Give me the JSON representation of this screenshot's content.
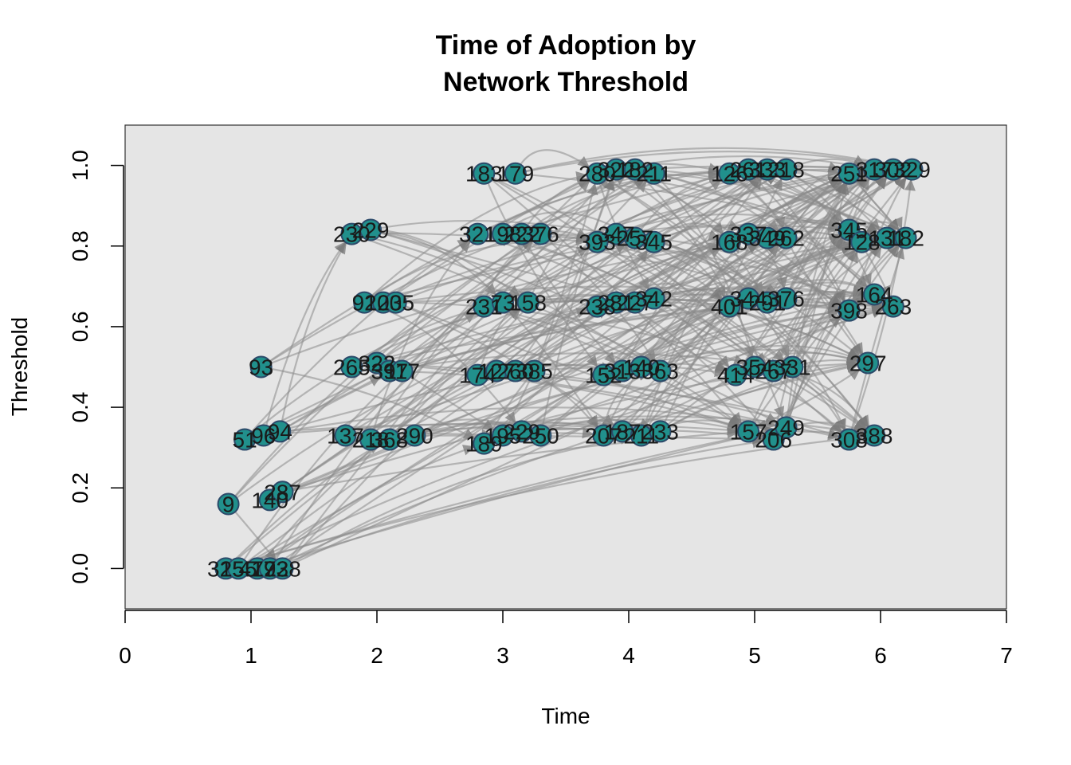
{
  "chart_data": {
    "type": "scatter",
    "title": [
      "Time of Adoption by",
      "Network Threshold"
    ],
    "xlabel": "Time",
    "ylabel": "Threshold",
    "xlim": [
      0,
      7
    ],
    "ylim": [
      -0.1,
      1.1
    ],
    "x_ticks": [
      "0",
      "1",
      "2",
      "3",
      "4",
      "5",
      "6",
      "7"
    ],
    "y_ticks": [
      "0.0",
      "0.2",
      "0.4",
      "0.6",
      "0.8",
      "1.0"
    ],
    "y_tick_values": [
      0.0,
      0.2,
      0.4,
      0.6,
      0.8,
      1.0
    ],
    "grid": false,
    "legend": "none",
    "colors": {
      "panel_bg": "#e5e5e5",
      "node_fill": "#21908c",
      "node_stroke": "#2c4a6a",
      "edge": "#8a8a8a",
      "label": "#1a1a1a"
    },
    "points": [
      {
        "x": 0.8,
        "y": 0.0,
        "label": "325"
      },
      {
        "x": 0.9,
        "y": 0.0,
        "label": "155"
      },
      {
        "x": 1.05,
        "y": 0.0,
        "label": "477"
      },
      {
        "x": 1.15,
        "y": 0.0,
        "label": "193"
      },
      {
        "x": 1.25,
        "y": 0.0,
        "label": "228"
      },
      {
        "x": 0.82,
        "y": 0.16,
        "label": "9"
      },
      {
        "x": 1.15,
        "y": 0.17,
        "label": "140"
      },
      {
        "x": 1.25,
        "y": 0.19,
        "label": "287"
      },
      {
        "x": 0.95,
        "y": 0.32,
        "label": "51"
      },
      {
        "x": 1.1,
        "y": 0.33,
        "label": "96"
      },
      {
        "x": 1.23,
        "y": 0.34,
        "label": "94"
      },
      {
        "x": 1.08,
        "y": 0.5,
        "label": "93"
      },
      {
        "x": 1.8,
        "y": 0.83,
        "label": "230"
      },
      {
        "x": 1.95,
        "y": 0.84,
        "label": "229"
      },
      {
        "x": 1.9,
        "y": 0.66,
        "label": "92"
      },
      {
        "x": 2.05,
        "y": 0.66,
        "label": "100"
      },
      {
        "x": 2.15,
        "y": 0.66,
        "label": "235"
      },
      {
        "x": 1.8,
        "y": 0.5,
        "label": "265"
      },
      {
        "x": 2.0,
        "y": 0.51,
        "label": "322"
      },
      {
        "x": 2.1,
        "y": 0.49,
        "label": "397"
      },
      {
        "x": 2.2,
        "y": 0.49,
        "label": "117"
      },
      {
        "x": 1.75,
        "y": 0.33,
        "label": "137"
      },
      {
        "x": 1.95,
        "y": 0.32,
        "label": "218"
      },
      {
        "x": 2.1,
        "y": 0.32,
        "label": "368"
      },
      {
        "x": 2.3,
        "y": 0.33,
        "label": "290"
      },
      {
        "x": 2.85,
        "y": 0.98,
        "label": "183"
      },
      {
        "x": 3.1,
        "y": 0.98,
        "label": "179"
      },
      {
        "x": 2.8,
        "y": 0.83,
        "label": "321"
      },
      {
        "x": 3.0,
        "y": 0.83,
        "label": "198"
      },
      {
        "x": 3.15,
        "y": 0.83,
        "label": "222"
      },
      {
        "x": 3.3,
        "y": 0.83,
        "label": "376"
      },
      {
        "x": 2.85,
        "y": 0.65,
        "label": "231"
      },
      {
        "x": 3.0,
        "y": 0.66,
        "label": "73"
      },
      {
        "x": 3.2,
        "y": 0.66,
        "label": "158"
      },
      {
        "x": 2.8,
        "y": 0.48,
        "label": "174"
      },
      {
        "x": 2.95,
        "y": 0.49,
        "label": "127"
      },
      {
        "x": 3.1,
        "y": 0.49,
        "label": "260"
      },
      {
        "x": 3.25,
        "y": 0.49,
        "label": "385"
      },
      {
        "x": 2.85,
        "y": 0.31,
        "label": "189"
      },
      {
        "x": 3.0,
        "y": 0.33,
        "label": "195"
      },
      {
        "x": 3.15,
        "y": 0.34,
        "label": "229"
      },
      {
        "x": 3.3,
        "y": 0.33,
        "label": "250"
      },
      {
        "x": 3.75,
        "y": 0.98,
        "label": "280"
      },
      {
        "x": 3.9,
        "y": 0.99,
        "label": "322"
      },
      {
        "x": 4.05,
        "y": 0.99,
        "label": "182"
      },
      {
        "x": 4.2,
        "y": 0.98,
        "label": "211"
      },
      {
        "x": 3.75,
        "y": 0.81,
        "label": "393"
      },
      {
        "x": 3.9,
        "y": 0.83,
        "label": "347"
      },
      {
        "x": 4.05,
        "y": 0.82,
        "label": "257"
      },
      {
        "x": 4.2,
        "y": 0.81,
        "label": "345"
      },
      {
        "x": 3.75,
        "y": 0.65,
        "label": "238"
      },
      {
        "x": 3.9,
        "y": 0.66,
        "label": "281"
      },
      {
        "x": 4.05,
        "y": 0.66,
        "label": "227"
      },
      {
        "x": 4.2,
        "y": 0.67,
        "label": "342"
      },
      {
        "x": 3.8,
        "y": 0.48,
        "label": "152"
      },
      {
        "x": 3.95,
        "y": 0.49,
        "label": "313"
      },
      {
        "x": 4.1,
        "y": 0.5,
        "label": "140"
      },
      {
        "x": 4.25,
        "y": 0.49,
        "label": "363"
      },
      {
        "x": 3.8,
        "y": 0.33,
        "label": "207"
      },
      {
        "x": 3.95,
        "y": 0.34,
        "label": "187"
      },
      {
        "x": 4.1,
        "y": 0.33,
        "label": "211"
      },
      {
        "x": 4.25,
        "y": 0.34,
        "label": "233"
      },
      {
        "x": 4.8,
        "y": 0.98,
        "label": "126"
      },
      {
        "x": 4.95,
        "y": 0.99,
        "label": "261"
      },
      {
        "x": 5.1,
        "y": 0.99,
        "label": "333"
      },
      {
        "x": 5.25,
        "y": 0.99,
        "label": "218"
      },
      {
        "x": 4.8,
        "y": 0.81,
        "label": "168"
      },
      {
        "x": 4.95,
        "y": 0.83,
        "label": "337"
      },
      {
        "x": 5.1,
        "y": 0.82,
        "label": "349"
      },
      {
        "x": 5.25,
        "y": 0.82,
        "label": "262"
      },
      {
        "x": 4.8,
        "y": 0.65,
        "label": "401"
      },
      {
        "x": 4.95,
        "y": 0.67,
        "label": "344"
      },
      {
        "x": 5.1,
        "y": 0.66,
        "label": "291"
      },
      {
        "x": 5.25,
        "y": 0.67,
        "label": "376"
      },
      {
        "x": 4.85,
        "y": 0.48,
        "label": "414"
      },
      {
        "x": 5.0,
        "y": 0.5,
        "label": "354"
      },
      {
        "x": 5.15,
        "y": 0.49,
        "label": "267"
      },
      {
        "x": 5.3,
        "y": 0.5,
        "label": "331"
      },
      {
        "x": 4.95,
        "y": 0.34,
        "label": "157"
      },
      {
        "x": 5.15,
        "y": 0.32,
        "label": "206"
      },
      {
        "x": 5.25,
        "y": 0.35,
        "label": "249"
      },
      {
        "x": 5.75,
        "y": 0.98,
        "label": "251"
      },
      {
        "x": 5.95,
        "y": 0.99,
        "label": "317"
      },
      {
        "x": 6.1,
        "y": 0.99,
        "label": "302"
      },
      {
        "x": 6.25,
        "y": 0.99,
        "label": "329"
      },
      {
        "x": 5.75,
        "y": 0.84,
        "label": "345"
      },
      {
        "x": 5.85,
        "y": 0.81,
        "label": "128"
      },
      {
        "x": 6.05,
        "y": 0.82,
        "label": "131"
      },
      {
        "x": 6.2,
        "y": 0.82,
        "label": "182"
      },
      {
        "x": 5.75,
        "y": 0.64,
        "label": "398"
      },
      {
        "x": 5.95,
        "y": 0.68,
        "label": "164"
      },
      {
        "x": 6.1,
        "y": 0.65,
        "label": "263"
      },
      {
        "x": 5.9,
        "y": 0.51,
        "label": "297"
      },
      {
        "x": 5.75,
        "y": 0.32,
        "label": "308"
      },
      {
        "x": 5.95,
        "y": 0.33,
        "label": "388"
      }
    ]
  }
}
